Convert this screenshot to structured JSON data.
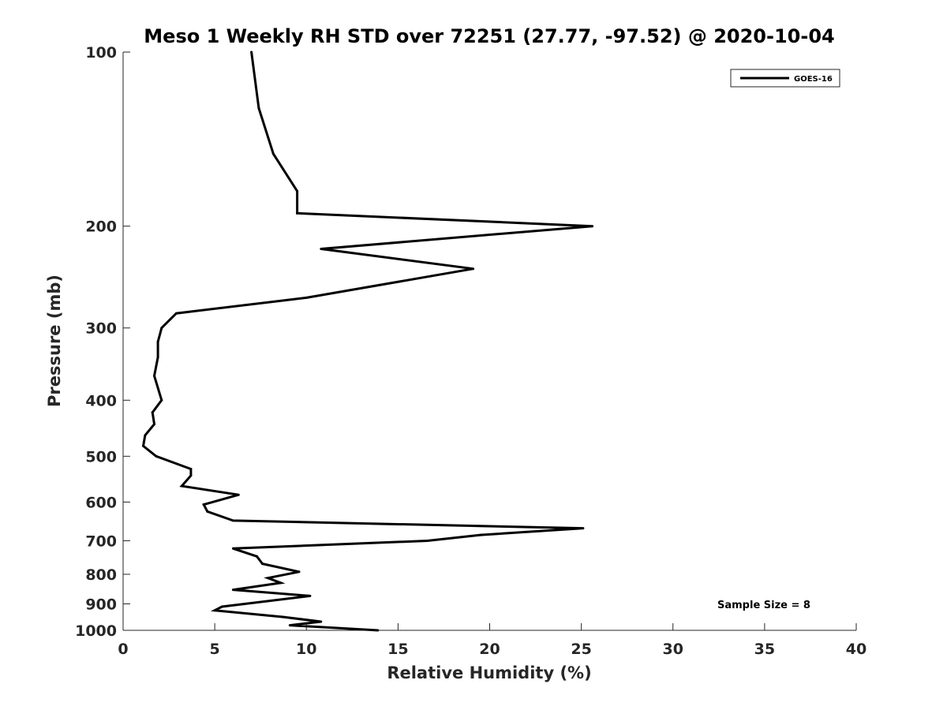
{
  "chart_data": {
    "type": "line",
    "title": "Meso 1 Weekly RH STD over 72251 (27.77, -97.52) @ 2020-10-04",
    "xlabel": "Relative Humidity (%)",
    "ylabel": "Pressure (mb)",
    "xlim": [
      0,
      40
    ],
    "ylim": [
      100,
      1000
    ],
    "yscale": "log",
    "y_reversed": true,
    "grid": false,
    "x_ticks": [
      "0",
      "5",
      "10",
      "15",
      "20",
      "25",
      "30",
      "35",
      "40"
    ],
    "y_ticks": [
      "100",
      "200",
      "300",
      "400",
      "500",
      "600",
      "700",
      "800",
      "900",
      "1000"
    ],
    "legend": {
      "position": "top-right",
      "entries": [
        "GOES-16"
      ]
    },
    "annotation": "Sample Size = 8",
    "series": [
      {
        "name": "GOES-16",
        "color": "#000000",
        "points": [
          [
            7.0,
            100
          ],
          [
            7.4,
            125
          ],
          [
            8.2,
            150
          ],
          [
            9.5,
            174
          ],
          [
            9.5,
            190
          ],
          [
            25.6,
            200
          ],
          [
            10.8,
            219
          ],
          [
            19.1,
            237
          ],
          [
            10.0,
            266
          ],
          [
            2.9,
            283
          ],
          [
            2.1,
            300
          ],
          [
            1.9,
            317
          ],
          [
            1.9,
            337
          ],
          [
            1.7,
            363
          ],
          [
            2.1,
            400
          ],
          [
            1.6,
            420
          ],
          [
            1.7,
            440
          ],
          [
            1.2,
            460
          ],
          [
            1.1,
            480
          ],
          [
            1.8,
            500
          ],
          [
            3.7,
            526
          ],
          [
            3.7,
            540
          ],
          [
            3.2,
            563
          ],
          [
            6.3,
            583
          ],
          [
            4.4,
            606
          ],
          [
            4.6,
            623
          ],
          [
            6.0,
            646
          ],
          [
            25.1,
            666
          ],
          [
            19.5,
            684
          ],
          [
            16.6,
            700
          ],
          [
            6.0,
            722
          ],
          [
            7.3,
            745
          ],
          [
            7.6,
            767
          ],
          [
            9.6,
            792
          ],
          [
            7.9,
            812
          ],
          [
            8.6,
            828
          ],
          [
            6.0,
            851
          ],
          [
            10.2,
            872
          ],
          [
            5.4,
            910
          ],
          [
            5.0,
            924
          ],
          [
            8.7,
            948
          ],
          [
            10.8,
            966
          ],
          [
            9.1,
            980
          ],
          [
            13.9,
            1000
          ]
        ]
      }
    ]
  }
}
